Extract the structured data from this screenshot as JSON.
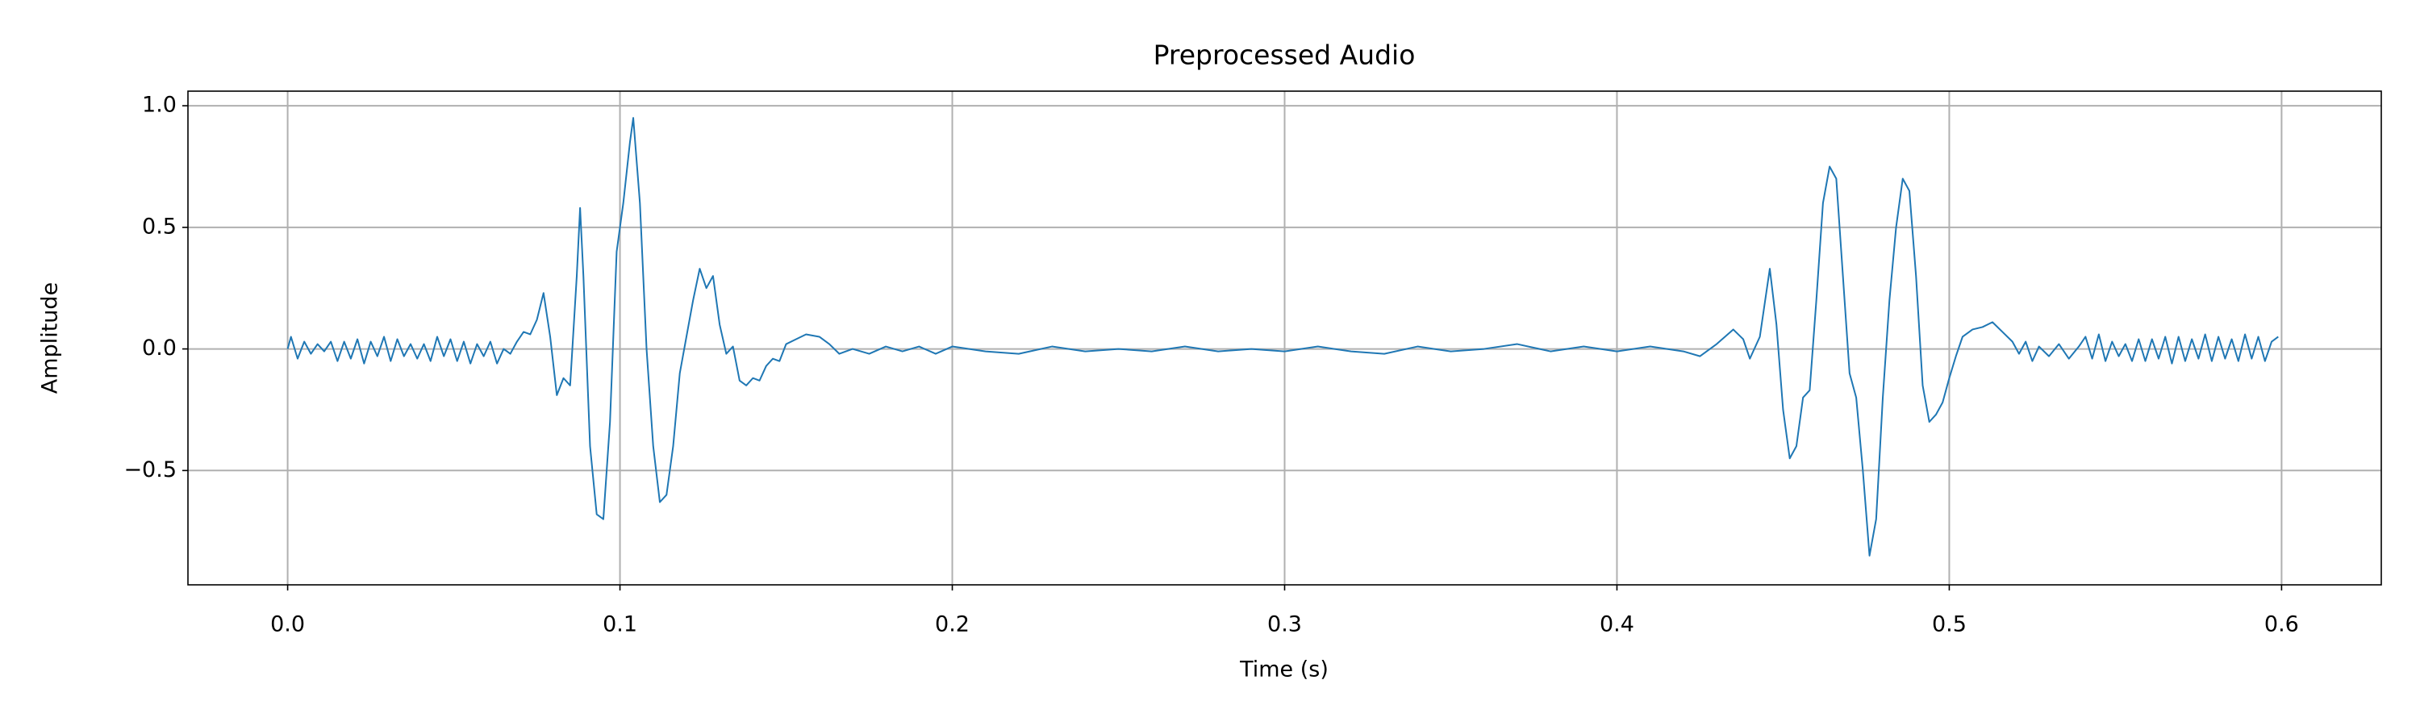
{
  "chart_data": {
    "type": "line",
    "title": "Preprocessed Audio",
    "x_label": "Time (s)",
    "y_label": "Amplitude",
    "color": "#1f77b4",
    "grid": true,
    "xlim": [
      -0.03,
      0.63
    ],
    "ylim": [
      -0.97,
      1.06
    ],
    "xticks": [
      {
        "value": 0,
        "label": "0.0"
      },
      0.1,
      0.2,
      0.3,
      0.4,
      0.5,
      0.6
    ],
    "yticks": [
      {
        "value": -0.5,
        "label": "−0.5"
      },
      {
        "value": 0,
        "label": "0.0"
      },
      0.5,
      {
        "value": 1,
        "label": "1.0"
      }
    ],
    "x": [
      0.0,
      0.001,
      0.003,
      0.005,
      0.007,
      0.009,
      0.011,
      0.013,
      0.015,
      0.017,
      0.019,
      0.021,
      0.023,
      0.025,
      0.027,
      0.029,
      0.031,
      0.033,
      0.035,
      0.037,
      0.039,
      0.041,
      0.043,
      0.045,
      0.047,
      0.049,
      0.051,
      0.053,
      0.055,
      0.057,
      0.059,
      0.061,
      0.063,
      0.065,
      0.067,
      0.069,
      0.071,
      0.073,
      0.075,
      0.077,
      0.079,
      0.081,
      0.083,
      0.085,
      0.087,
      0.088,
      0.089,
      0.091,
      0.093,
      0.095,
      0.097,
      0.099,
      0.101,
      0.103,
      0.104,
      0.106,
      0.108,
      0.11,
      0.112,
      0.114,
      0.116,
      0.118,
      0.12,
      0.122,
      0.124,
      0.126,
      0.128,
      0.13,
      0.132,
      0.134,
      0.136,
      0.138,
      0.14,
      0.142,
      0.144,
      0.146,
      0.148,
      0.15,
      0.153,
      0.156,
      0.16,
      0.163,
      0.166,
      0.17,
      0.175,
      0.18,
      0.185,
      0.19,
      0.195,
      0.2,
      0.21,
      0.22,
      0.23,
      0.24,
      0.25,
      0.26,
      0.27,
      0.28,
      0.29,
      0.3,
      0.31,
      0.32,
      0.33,
      0.34,
      0.35,
      0.36,
      0.37,
      0.38,
      0.39,
      0.4,
      0.41,
      0.42,
      0.425,
      0.43,
      0.435,
      0.438,
      0.44,
      0.443,
      0.446,
      0.448,
      0.45,
      0.452,
      0.454,
      0.456,
      0.458,
      0.46,
      0.462,
      0.464,
      0.466,
      0.468,
      0.47,
      0.472,
      0.474,
      0.476,
      0.478,
      0.48,
      0.482,
      0.484,
      0.486,
      0.488,
      0.49,
      0.492,
      0.494,
      0.496,
      0.498,
      0.5,
      0.502,
      0.504,
      0.507,
      0.51,
      0.513,
      0.516,
      0.519,
      0.521,
      0.523,
      0.525,
      0.527,
      0.53,
      0.533,
      0.536,
      0.539,
      0.541,
      0.543,
      0.545,
      0.547,
      0.549,
      0.551,
      0.553,
      0.555,
      0.557,
      0.559,
      0.561,
      0.563,
      0.565,
      0.567,
      0.569,
      0.571,
      0.573,
      0.575,
      0.577,
      0.579,
      0.581,
      0.583,
      0.585,
      0.587,
      0.589,
      0.591,
      0.593,
      0.595,
      0.597,
      0.599
    ],
    "values": [
      0.0,
      0.05,
      -0.04,
      0.03,
      -0.02,
      0.02,
      -0.01,
      0.03,
      -0.05,
      0.03,
      -0.04,
      0.04,
      -0.06,
      0.03,
      -0.03,
      0.05,
      -0.05,
      0.04,
      -0.03,
      0.02,
      -0.04,
      0.02,
      -0.05,
      0.05,
      -0.03,
      0.04,
      -0.05,
      0.03,
      -0.06,
      0.02,
      -0.03,
      0.03,
      -0.06,
      0.0,
      -0.02,
      0.03,
      0.07,
      0.06,
      0.12,
      0.23,
      0.05,
      -0.19,
      -0.12,
      -0.15,
      0.3,
      0.58,
      0.3,
      -0.4,
      -0.68,
      -0.7,
      -0.3,
      0.4,
      0.6,
      0.85,
      0.95,
      0.6,
      0.0,
      -0.4,
      -0.63,
      -0.6,
      -0.4,
      -0.1,
      0.05,
      0.2,
      0.33,
      0.25,
      0.3,
      0.1,
      -0.02,
      0.01,
      -0.13,
      -0.15,
      -0.12,
      -0.13,
      -0.07,
      -0.04,
      -0.05,
      0.02,
      0.04,
      0.06,
      0.05,
      0.02,
      -0.02,
      0.0,
      -0.02,
      0.01,
      -0.01,
      0.01,
      -0.02,
      0.01,
      -0.01,
      -0.02,
      0.01,
      -0.01,
      0.0,
      -0.01,
      0.01,
      -0.01,
      0.0,
      -0.01,
      0.01,
      -0.01,
      -0.02,
      0.01,
      -0.01,
      0.0,
      0.02,
      -0.01,
      0.01,
      -0.01,
      0.01,
      -0.01,
      -0.03,
      0.02,
      0.08,
      0.04,
      -0.04,
      0.05,
      0.33,
      0.1,
      -0.25,
      -0.45,
      -0.4,
      -0.2,
      -0.17,
      0.2,
      0.6,
      0.75,
      0.7,
      0.3,
      -0.1,
      -0.2,
      -0.5,
      -0.85,
      -0.7,
      -0.2,
      0.2,
      0.5,
      0.7,
      0.65,
      0.3,
      -0.15,
      -0.3,
      -0.27,
      -0.22,
      -0.12,
      -0.03,
      0.05,
      0.08,
      0.09,
      0.11,
      0.07,
      0.03,
      -0.02,
      0.03,
      -0.05,
      0.01,
      -0.03,
      0.02,
      -0.04,
      0.01,
      0.05,
      -0.04,
      0.06,
      -0.05,
      0.03,
      -0.03,
      0.02,
      -0.05,
      0.04,
      -0.05,
      0.04,
      -0.04,
      0.05,
      -0.06,
      0.05,
      -0.05,
      0.04,
      -0.04,
      0.06,
      -0.05,
      0.05,
      -0.04,
      0.04,
      -0.05,
      0.06,
      -0.04,
      0.05,
      -0.05,
      0.03,
      0.05
    ]
  }
}
